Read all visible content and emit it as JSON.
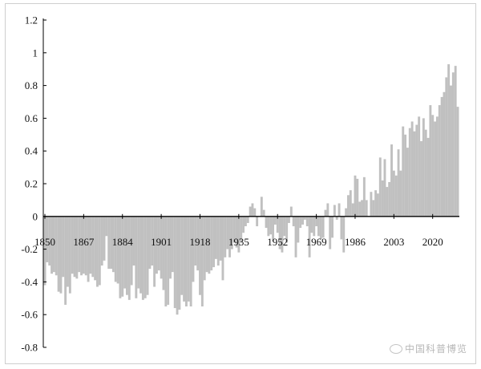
{
  "chart_data": {
    "type": "bar",
    "title": "",
    "xlabel": "",
    "ylabel": "",
    "ylim": [
      -0.8,
      1.2
    ],
    "y_ticks": [
      1.2,
      1,
      0.8,
      0.6,
      0.4,
      0.2,
      0,
      -0.2,
      -0.4,
      -0.6,
      -0.8
    ],
    "y_tick_labels": [
      "1.2",
      "1",
      "0.8",
      "0.6",
      "0.4",
      "0.2",
      "0",
      "-0.2",
      "-0.4",
      "-0.6",
      "-0.8"
    ],
    "x_tick_years": [
      1850,
      1867,
      1884,
      1901,
      1918,
      1935,
      1952,
      1969,
      1986,
      2003,
      2020
    ],
    "x_tick_labels": [
      "1850",
      "1867",
      "1884",
      "1901",
      "1918",
      "1935",
      "1952",
      "1969",
      "1986",
      "2003",
      "2020"
    ],
    "bar_color": "#c0c0c0",
    "grid": false,
    "legend": "none",
    "start_year": 1850,
    "values": [
      -0.42,
      -0.28,
      -0.3,
      -0.35,
      -0.34,
      -0.36,
      -0.46,
      -0.47,
      -0.37,
      -0.54,
      -0.43,
      -0.47,
      -0.35,
      -0.37,
      -0.38,
      -0.34,
      -0.36,
      -0.35,
      -0.36,
      -0.4,
      -0.35,
      -0.37,
      -0.39,
      -0.43,
      -0.42,
      -0.3,
      -0.27,
      -0.12,
      -0.32,
      -0.32,
      -0.34,
      -0.4,
      -0.41,
      -0.5,
      -0.49,
      -0.44,
      -0.48,
      -0.51,
      -0.42,
      -0.3,
      -0.5,
      -0.44,
      -0.47,
      -0.51,
      -0.5,
      -0.48,
      -0.32,
      -0.3,
      -0.43,
      -0.35,
      -0.33,
      -0.38,
      -0.45,
      -0.55,
      -0.54,
      -0.38,
      -0.34,
      -0.56,
      -0.6,
      -0.57,
      -0.48,
      -0.52,
      -0.55,
      -0.52,
      -0.55,
      -0.4,
      -0.3,
      -0.33,
      -0.48,
      -0.55,
      -0.39,
      -0.34,
      -0.35,
      -0.33,
      -0.31,
      -0.26,
      -0.3,
      -0.27,
      -0.39,
      -0.25,
      -0.2,
      -0.25,
      -0.2,
      -0.16,
      -0.19,
      -0.22,
      -0.16,
      -0.1,
      -0.06,
      -0.04,
      0.06,
      0.08,
      0.05,
      -0.06,
      0.0,
      0.12,
      0.04,
      -0.07,
      -0.12,
      -0.11,
      -0.15,
      -0.05,
      -0.1,
      -0.2,
      -0.22,
      -0.12,
      -0.16,
      -0.04,
      0.06,
      -0.06,
      -0.25,
      -0.16,
      -0.07,
      -0.05,
      -0.02,
      -0.06,
      -0.25,
      -0.1,
      -0.12,
      -0.06,
      -0.12,
      -0.14,
      -0.13,
      0.04,
      0.08,
      -0.2,
      -0.13,
      0.07,
      -0.02,
      0.08,
      -0.14,
      -0.22,
      0.05,
      0.13,
      0.16,
      0.08,
      0.25,
      0.23,
      0.09,
      0.1,
      0.24,
      0.1,
      0.0,
      0.15,
      0.1,
      0.16,
      0.14,
      0.36,
      0.22,
      0.35,
      0.18,
      0.21,
      0.44,
      0.28,
      0.25,
      0.41,
      0.28,
      0.55,
      0.5,
      0.42,
      0.54,
      0.58,
      0.52,
      0.56,
      0.61,
      0.46,
      0.6,
      0.53,
      0.48,
      0.68,
      0.62,
      0.58,
      0.61,
      0.68,
      0.73,
      0.76,
      0.85,
      0.93,
      0.8,
      0.88,
      0.92,
      0.67
    ]
  },
  "watermark": {
    "text": "中国科普博览"
  }
}
